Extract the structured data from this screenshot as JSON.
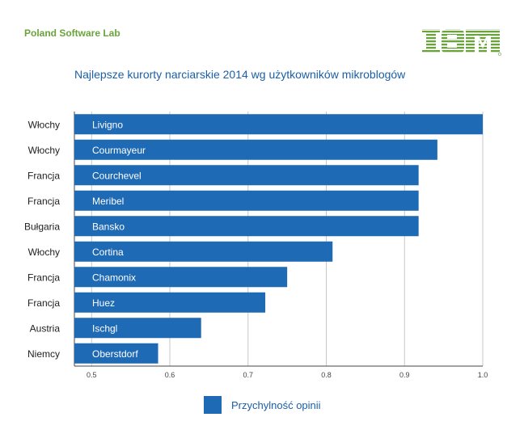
{
  "header": {
    "brand": "Poland Software Lab",
    "logo_text": "IBM",
    "title": "Najlepsze kurorty narciarskie 2014 wg użytkowników mikroblogów"
  },
  "colors": {
    "bar": "#1f6ab4",
    "brand": "#6aa33c",
    "title": "#1a5fa8",
    "grid": "#c8c8c8",
    "axis": "#444444"
  },
  "chart_data": {
    "type": "bar",
    "orientation": "horizontal",
    "title": "Najlepsze kurorty narciarskie 2014 wg użytkowników mikroblogów",
    "categories": [
      "Livigno",
      "Courmayeur",
      "Courchevel",
      "Meribel",
      "Bansko",
      "Cortina",
      "Chamonix",
      "Huez",
      "Ischgl",
      "Oberstdorf"
    ],
    "countries": [
      "Włochy",
      "Włochy",
      "Francja",
      "Francja",
      "Bułgaria",
      "Włochy",
      "Francja",
      "Francja",
      "Austria",
      "Niemcy"
    ],
    "series": [
      {
        "name": "Przychylność opinii",
        "values": [
          1.0,
          0.942,
          0.918,
          0.918,
          0.918,
          0.808,
          0.75,
          0.722,
          0.64,
          0.585
        ]
      }
    ],
    "xlim": [
      0.478,
      1.0
    ],
    "xticks": [
      "0.5",
      "0.6",
      "0.7",
      "0.8",
      "0.9",
      "1.0"
    ],
    "grid": true,
    "legend_position": "bottom-center"
  }
}
